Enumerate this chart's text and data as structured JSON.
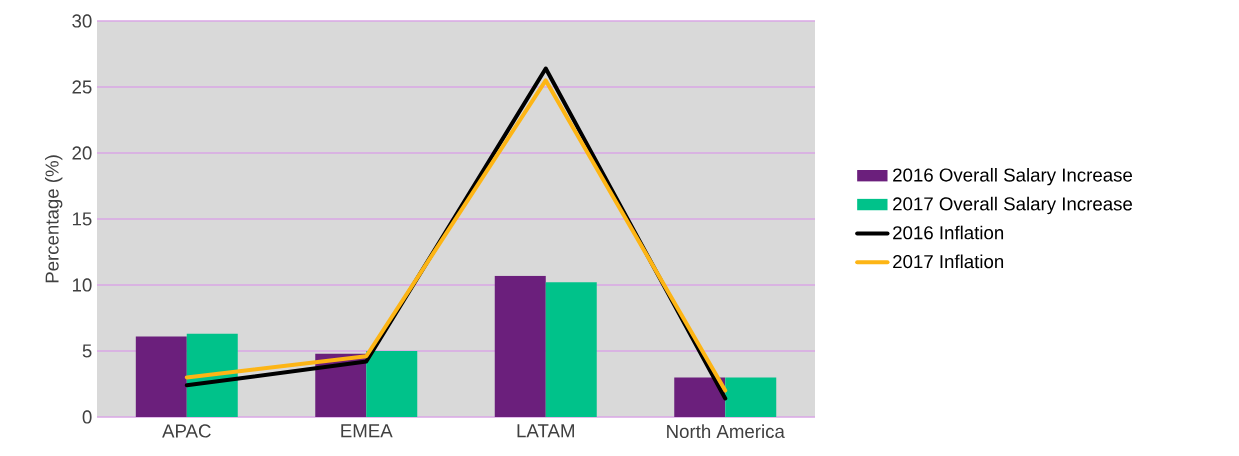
{
  "chart_data": {
    "type": "bar",
    "ylabel": "Percentage (%)",
    "categories": [
      "APAC",
      "EMEA",
      "LATAM",
      "North America"
    ],
    "series": [
      {
        "name": "2016 Overall Salary Increase",
        "color": "#6b1f7c",
        "values": [
          6.1,
          4.8,
          10.7,
          3.0
        ]
      },
      {
        "name": "2017 Overall Salary Increase",
        "color": "#00c28a",
        "values": [
          6.3,
          5.0,
          10.2,
          3.0
        ]
      },
      {
        "name": "2016 Inflation",
        "type": "line",
        "color": "#000000",
        "values": [
          2.4,
          4.2,
          26.4,
          1.4
        ]
      },
      {
        "name": "2017 Inflation",
        "type": "line",
        "color": "#fdb515",
        "values": [
          3.0,
          4.6,
          25.5,
          2.0
        ]
      }
    ],
    "ylim": [
      0,
      30
    ],
    "yticks": [
      0,
      5,
      10,
      15,
      20,
      25,
      30
    ],
    "grid": "y",
    "legend": "right"
  }
}
